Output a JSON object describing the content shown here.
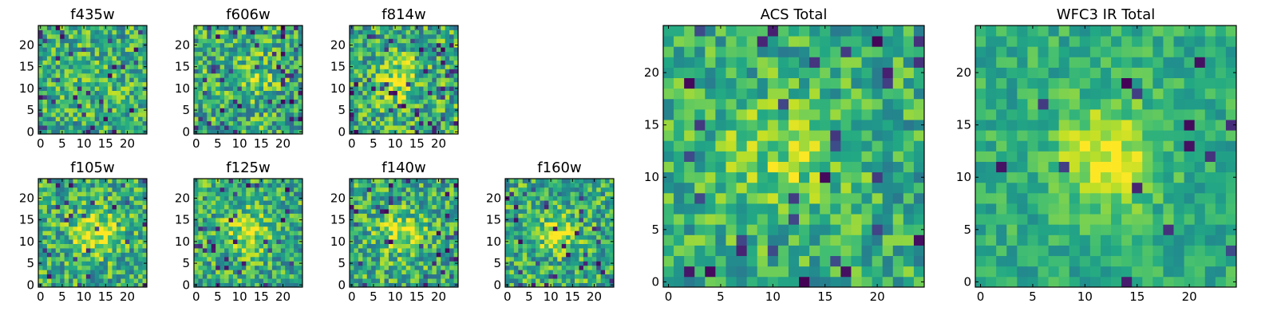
{
  "chart_data": [
    {
      "type": "heatmap",
      "title": "f435w",
      "grid_size": 25,
      "xlim": [
        0,
        24
      ],
      "ylim": [
        0,
        24
      ],
      "xticks": [
        "0",
        "5",
        "10",
        "15",
        "20"
      ],
      "yticks": [
        "0",
        "5",
        "10",
        "15",
        "20"
      ],
      "colormap": "viridis",
      "seed": 11,
      "blob": {
        "cx": 12,
        "cy": 12,
        "sigma": 5,
        "amp": 0.05
      },
      "noise": 0.55,
      "dark_fraction": 0.05
    },
    {
      "type": "heatmap",
      "title": "f606w",
      "grid_size": 25,
      "xlim": [
        0,
        24
      ],
      "ylim": [
        0,
        24
      ],
      "xticks": [
        "0",
        "5",
        "10",
        "15",
        "20"
      ],
      "yticks": [
        "0",
        "5",
        "10",
        "15",
        "20"
      ],
      "colormap": "viridis",
      "seed": 23,
      "blob": {
        "cx": 12,
        "cy": 12,
        "sigma": 3.5,
        "amp": 0.18
      },
      "noise": 0.6,
      "dark_fraction": 0.07
    },
    {
      "type": "heatmap",
      "title": "f814w",
      "grid_size": 25,
      "xlim": [
        0,
        24
      ],
      "ylim": [
        0,
        24
      ],
      "xticks": [
        "0",
        "5",
        "10",
        "15",
        "20"
      ],
      "yticks": [
        "0",
        "5",
        "10",
        "15",
        "20"
      ],
      "colormap": "viridis",
      "seed": 37,
      "blob": {
        "cx": 11,
        "cy": 12,
        "sigma": 3.5,
        "amp": 0.25
      },
      "noise": 0.6,
      "dark_fraction": 0.07
    },
    {
      "type": "heatmap",
      "title": "f105w",
      "grid_size": 25,
      "xlim": [
        0,
        24
      ],
      "ylim": [
        0,
        24
      ],
      "xticks": [
        "0",
        "5",
        "10",
        "15",
        "20"
      ],
      "yticks": [
        "0",
        "5",
        "10",
        "15",
        "20"
      ],
      "colormap": "viridis",
      "seed": 41,
      "blob": {
        "cx": 13,
        "cy": 12,
        "sigma": 3.5,
        "amp": 0.35
      },
      "noise": 0.55,
      "dark_fraction": 0.05
    },
    {
      "type": "heatmap",
      "title": "f125w",
      "grid_size": 25,
      "xlim": [
        0,
        24
      ],
      "ylim": [
        0,
        24
      ],
      "xticks": [
        "0",
        "5",
        "10",
        "15",
        "20"
      ],
      "yticks": [
        "0",
        "5",
        "10",
        "15",
        "20"
      ],
      "colormap": "viridis",
      "seed": 53,
      "blob": {
        "cx": 12,
        "cy": 12,
        "sigma": 3.5,
        "amp": 0.3
      },
      "noise": 0.55,
      "dark_fraction": 0.06
    },
    {
      "type": "heatmap",
      "title": "f140w",
      "grid_size": 25,
      "xlim": [
        0,
        24
      ],
      "ylim": [
        0,
        24
      ],
      "xticks": [
        "0",
        "5",
        "10",
        "15",
        "20"
      ],
      "yticks": [
        "0",
        "5",
        "10",
        "15",
        "20"
      ],
      "colormap": "viridis",
      "seed": 67,
      "blob": {
        "cx": 11,
        "cy": 12,
        "sigma": 3.5,
        "amp": 0.3
      },
      "noise": 0.55,
      "dark_fraction": 0.05
    },
    {
      "type": "heatmap",
      "title": "f160w",
      "grid_size": 25,
      "xlim": [
        0,
        24
      ],
      "ylim": [
        0,
        24
      ],
      "xticks": [
        "0",
        "5",
        "10",
        "15",
        "20"
      ],
      "yticks": [
        "0",
        "5",
        "10",
        "15",
        "20"
      ],
      "colormap": "viridis",
      "seed": 79,
      "blob": {
        "cx": 11,
        "cy": 12,
        "sigma": 3,
        "amp": 0.28
      },
      "noise": 0.55,
      "dark_fraction": 0.06
    },
    {
      "type": "heatmap",
      "title": "ACS Total",
      "grid_size": 25,
      "xlim": [
        0,
        24
      ],
      "ylim": [
        0,
        24
      ],
      "xticks": [
        "0",
        "5",
        "10",
        "15",
        "20"
      ],
      "yticks": [
        "0",
        "5",
        "10",
        "15",
        "20"
      ],
      "colormap": "viridis",
      "seed": 97,
      "blob": {
        "cx": 11,
        "cy": 12,
        "sigma": 4,
        "amp": 0.22
      },
      "noise": 0.45,
      "dark_fraction": 0.05
    },
    {
      "type": "heatmap",
      "title": "WFC3 IR Total",
      "grid_size": 25,
      "xlim": [
        0,
        24
      ],
      "ylim": [
        0,
        24
      ],
      "xticks": [
        "0",
        "5",
        "10",
        "15",
        "20"
      ],
      "yticks": [
        "0",
        "5",
        "10",
        "15",
        "20"
      ],
      "colormap": "viridis",
      "seed": 131,
      "blob": {
        "cx": 12,
        "cy": 12,
        "sigma": 3.5,
        "amp": 0.35
      },
      "noise": 0.3,
      "dark_fraction": 0.03
    }
  ]
}
